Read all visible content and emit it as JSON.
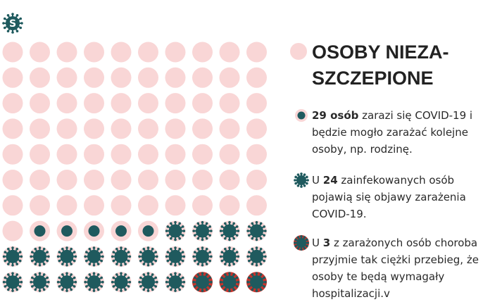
{
  "logo": "S",
  "legend": {
    "title": [
      "OSOBY NIEZA-",
      "SZCZEPIONE"
    ],
    "items": [
      {
        "prefix": null,
        "count": 29,
        "count_unit": "osób",
        "text": "zarazi się COVID-19 i będzie mogło zarażać kolejne osoby, np. rodzinę."
      },
      {
        "prefix": "U",
        "count": 24,
        "count_unit": null,
        "text": "zainfekowanych osób pojawią się objawy zarażenia COVID-19."
      },
      {
        "prefix": "U",
        "count": 3,
        "count_unit": null,
        "text": "z zarażonych osób choroba przyjmie tak ciężki przebieg, że osoby te będą wymagały hospitalizacji.v"
      }
    ]
  }
}
